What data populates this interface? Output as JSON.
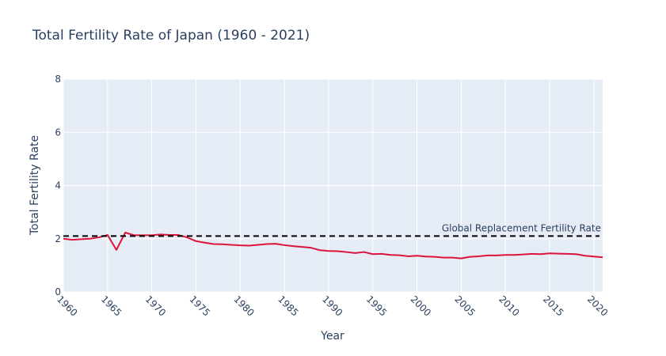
{
  "chart_data": {
    "type": "line",
    "title": "Total Fertility Rate of Japan (1960 - 2021)",
    "xlabel": "Year",
    "ylabel": "Total Fertility Rate",
    "xlim": [
      1960,
      2021
    ],
    "ylim": [
      0,
      8
    ],
    "x_ticks": [
      1960,
      1965,
      1970,
      1975,
      1980,
      1985,
      1990,
      1995,
      2000,
      2005,
      2010,
      2015,
      2020
    ],
    "y_ticks": [
      0,
      2,
      4,
      6,
      8
    ],
    "grid": true,
    "series": [
      {
        "color": "#dc143c",
        "x": [
          1960,
          1961,
          1962,
          1963,
          1964,
          1965,
          1966,
          1967,
          1968,
          1969,
          1970,
          1971,
          1972,
          1973,
          1974,
          1975,
          1976,
          1977,
          1978,
          1979,
          1980,
          1981,
          1982,
          1983,
          1984,
          1985,
          1986,
          1987,
          1988,
          1989,
          1990,
          1991,
          1992,
          1993,
          1994,
          1995,
          1996,
          1997,
          1998,
          1999,
          2000,
          2001,
          2002,
          2003,
          2004,
          2005,
          2006,
          2007,
          2008,
          2009,
          2010,
          2011,
          2012,
          2013,
          2014,
          2015,
          2016,
          2017,
          2018,
          2019,
          2020,
          2021
        ],
        "y": [
          2.0,
          1.96,
          1.98,
          2.0,
          2.05,
          2.14,
          1.58,
          2.23,
          2.13,
          2.13,
          2.13,
          2.16,
          2.14,
          2.14,
          2.05,
          1.91,
          1.85,
          1.8,
          1.79,
          1.77,
          1.75,
          1.74,
          1.77,
          1.8,
          1.81,
          1.76,
          1.72,
          1.69,
          1.66,
          1.57,
          1.54,
          1.53,
          1.5,
          1.46,
          1.5,
          1.42,
          1.43,
          1.39,
          1.38,
          1.34,
          1.36,
          1.33,
          1.32,
          1.29,
          1.29,
          1.26,
          1.32,
          1.34,
          1.37,
          1.37,
          1.39,
          1.39,
          1.41,
          1.43,
          1.42,
          1.45,
          1.44,
          1.43,
          1.42,
          1.36,
          1.33,
          1.3
        ]
      }
    ],
    "reference_line": {
      "y": 2.1,
      "color": "#000000",
      "style": "dashed",
      "label": "Global Replacement Fertility Rate"
    }
  },
  "colors": {
    "plot_background": "#e5ecf6",
    "grid": "#ffffff",
    "text": "#2a3f5f"
  }
}
